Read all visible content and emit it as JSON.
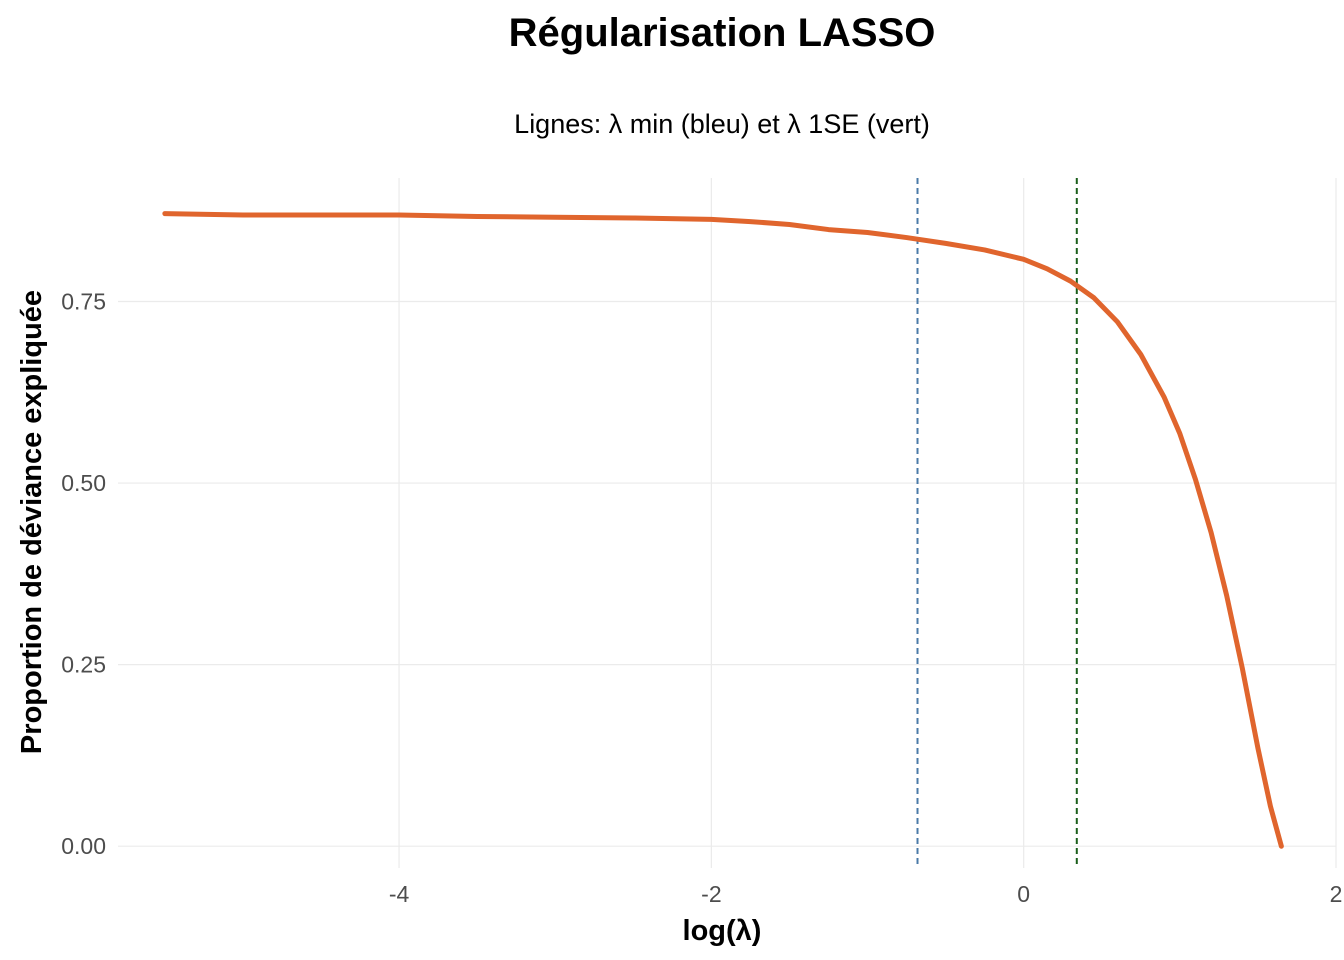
{
  "chart_data": {
    "type": "line",
    "title": "Régularisation LASSO",
    "subtitle": "Lignes: λ min (bleu) et λ 1SE (vert)",
    "xlabel": "log(λ)",
    "ylabel": "Proportion de déviance expliquée",
    "xlim": [
      -5.8,
      2.0
    ],
    "ylim": [
      -0.03,
      0.92
    ],
    "x_ticks": [
      -4,
      -2,
      0,
      2
    ],
    "x_tick_labels": [
      "-4",
      "-2",
      "0",
      "2"
    ],
    "y_ticks": [
      0.0,
      0.25,
      0.5,
      0.75
    ],
    "y_tick_labels": [
      "0.00",
      "0.25",
      "0.50",
      "0.75"
    ],
    "grid": true,
    "legend": "none",
    "series": [
      {
        "color": "#e0652d",
        "x": [
          -5.5,
          -5.0,
          -4.5,
          -4.0,
          -3.5,
          -3.0,
          -2.5,
          -2.0,
          -1.75,
          -1.5,
          -1.25,
          -1.0,
          -0.75,
          -0.5,
          -0.25,
          0.0,
          0.15,
          0.3,
          0.45,
          0.6,
          0.75,
          0.9,
          1.0,
          1.1,
          1.2,
          1.3,
          1.4,
          1.5,
          1.58,
          1.65
        ],
        "y": [
          0.871,
          0.869,
          0.869,
          0.869,
          0.867,
          0.866,
          0.865,
          0.863,
          0.86,
          0.856,
          0.849,
          0.845,
          0.838,
          0.83,
          0.821,
          0.808,
          0.795,
          0.778,
          0.755,
          0.722,
          0.677,
          0.618,
          0.568,
          0.505,
          0.432,
          0.345,
          0.245,
          0.135,
          0.055,
          0.0
        ]
      }
    ],
    "vlines": [
      {
        "x": -0.68,
        "color": "#4a7aa8",
        "style": "dashed"
      },
      {
        "x": 0.34,
        "color": "#1a5e1a",
        "style": "dashed"
      }
    ]
  }
}
